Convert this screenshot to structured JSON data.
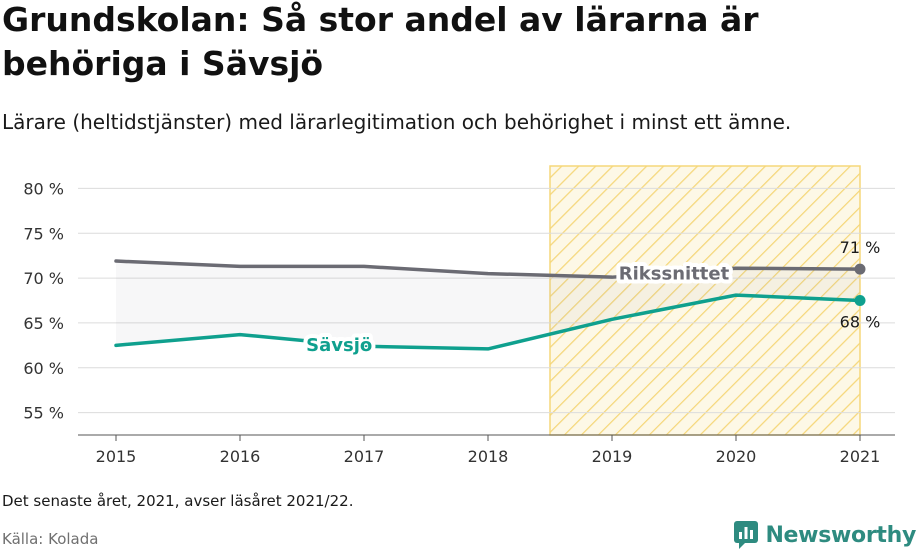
{
  "title": "Grundskolan: Så stor andel av lärarna är behöriga i Sävsjö",
  "subtitle": "Lärare (heltidstjänster) med lärarlegitimation och behörighet i minst ett ämne.",
  "note": "Det senaste året, 2021, avser läsåret 2021/22.",
  "source": "Källa: Kolada",
  "brand": {
    "name": "Newsworthy",
    "icon": "newsworthy-logo-icon"
  },
  "colors": {
    "national": "#6b6b73",
    "local": "#0fa08e",
    "highlight": "#f5d77a"
  },
  "chart_data": {
    "type": "line",
    "x": [
      2015,
      2016,
      2017,
      2018,
      2019,
      2020,
      2021
    ],
    "y_ticks": [
      55,
      60,
      65,
      70,
      75,
      80
    ],
    "y_tick_suffix": " %",
    "ylim": [
      52.5,
      82.5
    ],
    "grid": true,
    "highlight_range": [
      2018.5,
      2021
    ],
    "series": [
      {
        "name": "Rikssnittet",
        "values": [
          71.9,
          71.3,
          71.3,
          70.5,
          70.1,
          71.1,
          71.0
        ],
        "end_label": "71 %",
        "label_at": 2019.5
      },
      {
        "name": "Sävsjö",
        "values": [
          62.5,
          63.7,
          62.4,
          62.1,
          65.4,
          68.1,
          67.5
        ],
        "end_label": "68 %",
        "label_at": 2016.8
      }
    ]
  }
}
